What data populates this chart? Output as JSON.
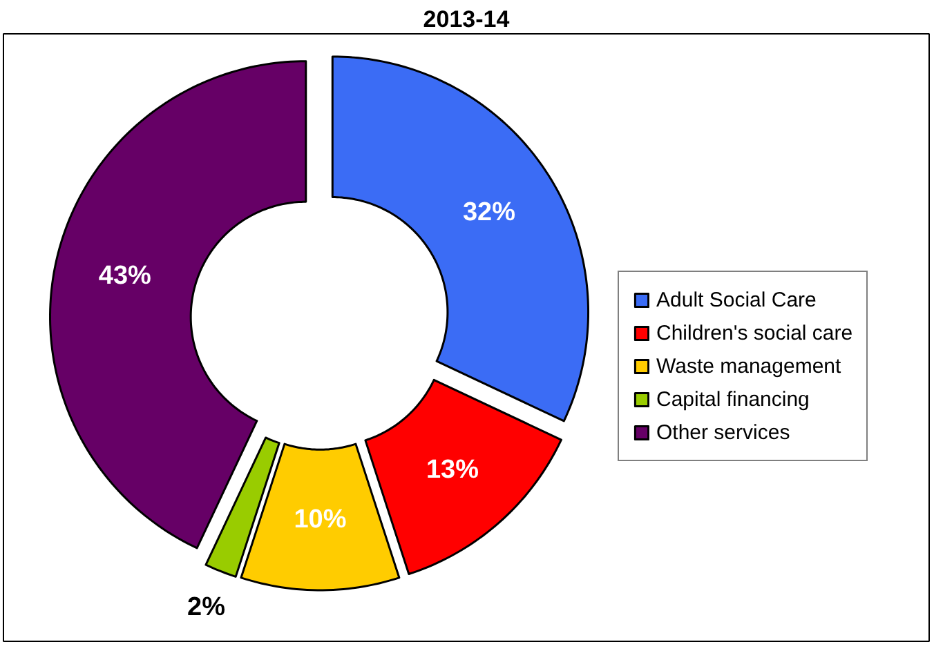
{
  "chart_data": {
    "type": "donut",
    "title": "2013-14",
    "categories": [
      "Adult Social Care",
      "Children's social care",
      "Waste management",
      "Capital financing",
      "Other services"
    ],
    "values": [
      32,
      13,
      10,
      2,
      43
    ],
    "value_labels": [
      "32%",
      "13%",
      "10%",
      "2%",
      "43%"
    ],
    "colors": [
      "#3b6cf5",
      "#ff0000",
      "#ffcc00",
      "#99cc00",
      "#660066"
    ],
    "legend": "right"
  }
}
